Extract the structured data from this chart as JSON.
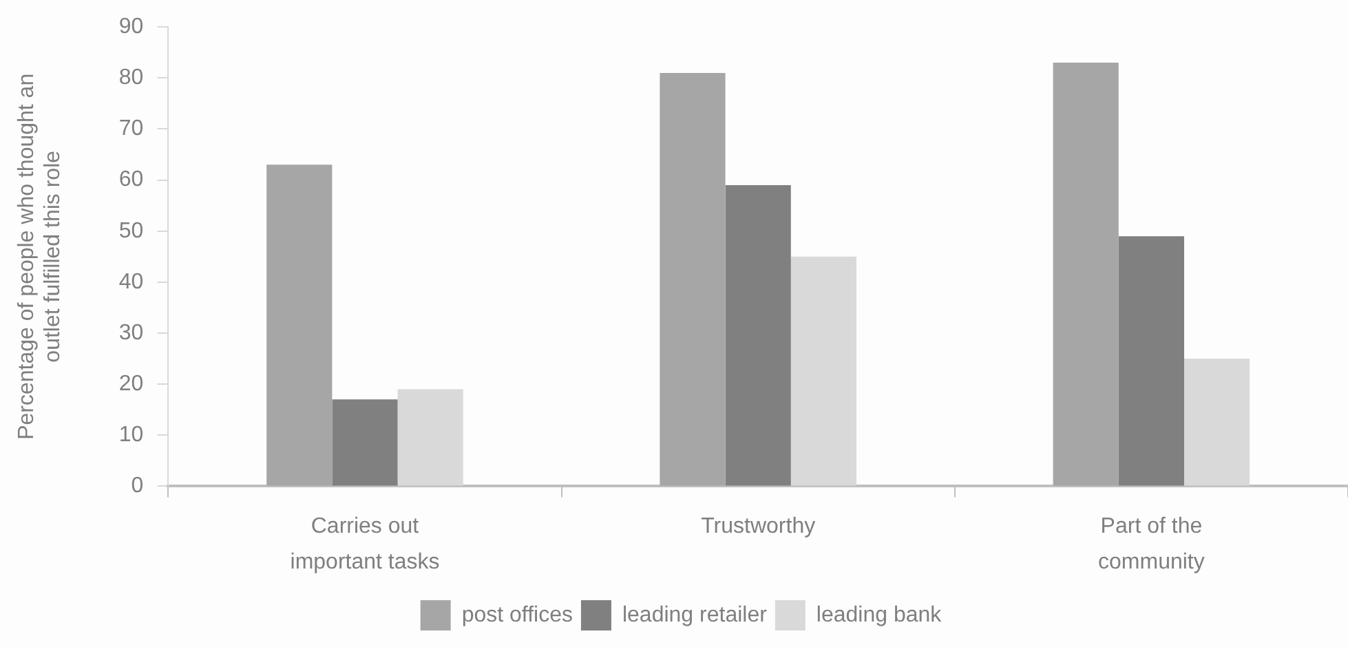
{
  "chart_data": {
    "type": "bar",
    "ylabel": "Percentage of people who thought an outlet fulfilled this role",
    "categories": [
      "Carries out important tasks",
      "Trustworthy",
      "Part of the community"
    ],
    "series": [
      {
        "name": "post offices",
        "color": "#a6a6a6",
        "values": [
          63,
          81,
          83
        ]
      },
      {
        "name": "leading retailer",
        "color": "#808080",
        "values": [
          17,
          59,
          49
        ]
      },
      {
        "name": "leading bank",
        "color": "#d9d9d9",
        "values": [
          19,
          45,
          25
        ]
      }
    ],
    "ylim": [
      0,
      90
    ],
    "yticks": [
      0,
      10,
      20,
      30,
      40,
      50,
      60,
      70,
      80,
      90
    ],
    "legend": "bottom",
    "grid": false
  }
}
